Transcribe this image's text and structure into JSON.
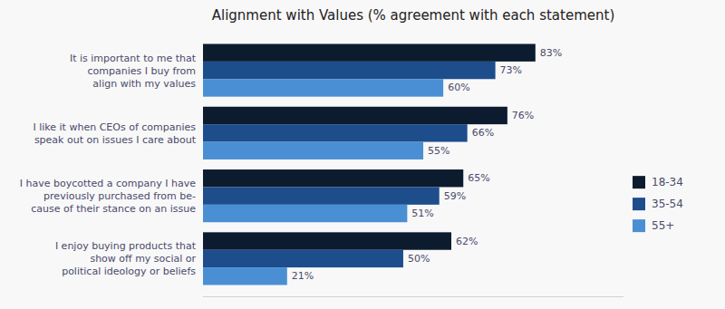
{
  "chart_data": {
    "type": "bar",
    "orientation": "horizontal",
    "title": "Alignment with Values (% agreement with each statement)",
    "categories": [
      "It is important to me that\ncompanies I buy from\nalign with my values",
      "I like it when CEOs of companies\nspeak out on issues I care about",
      "I have boycotted a company I have\npreviously purchased from be-\ncause of their stance on an issue",
      "I enjoy buying products that\nshow off my social or\npolitical ideology or beliefs"
    ],
    "series": [
      {
        "name": "18-34",
        "color": "#0d1b2e",
        "values": [
          83,
          76,
          65,
          62
        ],
        "value_labels": [
          "83%",
          "76%",
          "65%",
          "62%"
        ]
      },
      {
        "name": "35-54",
        "color": "#1e4d8c",
        "values": [
          73,
          66,
          59,
          50
        ],
        "value_labels": [
          "73%",
          "66%",
          "59%",
          "50%"
        ]
      },
      {
        "name": "55+",
        "color": "#4a8fd4",
        "values": [
          60,
          55,
          51,
          21
        ],
        "value_labels": [
          "60%",
          "55%",
          "51%",
          "21%"
        ]
      }
    ],
    "xlim": [
      0,
      105
    ],
    "data_labels": true,
    "tick_labels": "y",
    "grid": false,
    "legend": "right"
  }
}
